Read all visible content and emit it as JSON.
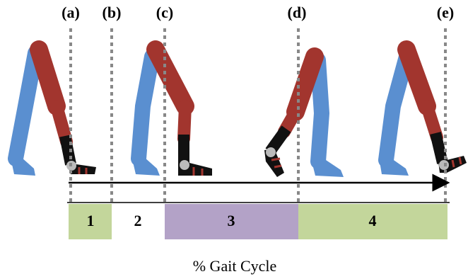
{
  "events": [
    "(a)",
    "(b)",
    "(c)",
    "(d)",
    "(e)"
  ],
  "phases": [
    "1",
    "2",
    "3",
    "4"
  ],
  "caption": "% Gait Cycle"
}
